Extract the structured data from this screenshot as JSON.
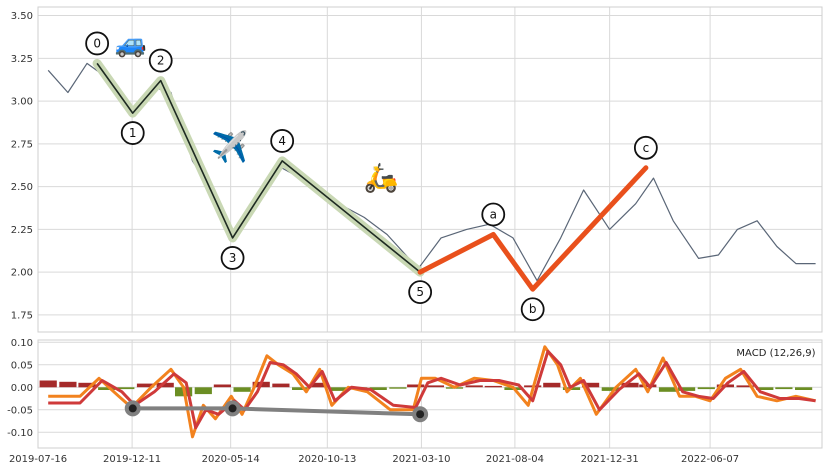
{
  "colors": {
    "price": "#5a6677",
    "impulse_line": "#1e2a22",
    "impulse_glow": "#c9d8b4",
    "correction": "#e9501c",
    "macd": "#f2821e",
    "signal": "#cf3a3a",
    "hist_pos": "#a52a2a",
    "hist_neg": "#6b8e23",
    "divergence": "#808080",
    "grid": "#d9d9d9"
  },
  "icons": [
    "car-emoji",
    "airplane-emoji",
    "scooter-emoji"
  ],
  "chart_data": [
    {
      "type": "line",
      "title": "",
      "xlabel": "",
      "ylabel": "",
      "xlim": [
        "2019-07-16",
        "2022-11-30"
      ],
      "ylim": [
        1.65,
        3.55
      ],
      "grid": true,
      "x_ticks": [
        "2019-07-16",
        "2019-12-11",
        "2020-05-14",
        "2020-10-13",
        "2021-03-10",
        "2021-08-04",
        "2021-12-31",
        "2022-06-07"
      ],
      "y_ticks": [
        "1.75",
        "2.00",
        "2.25",
        "2.50",
        "2.75",
        "3.00",
        "3.25",
        "3.50"
      ],
      "series": [
        {
          "role": "price",
          "x": [
            "2019-08-01",
            "2019-09-01",
            "2019-10-01",
            "2019-11-15",
            "2019-12-10",
            "2020-01-15",
            "2020-02-10",
            "2020-03-15",
            "2020-04-10",
            "2020-05-20",
            "2020-06-20",
            "2020-07-28",
            "2020-09-01",
            "2020-10-10",
            "2020-11-10",
            "2020-12-10",
            "2021-01-15",
            "2021-03-05",
            "2021-04-10",
            "2021-05-20",
            "2021-06-25",
            "2021-08-01",
            "2021-09-08",
            "2021-10-15",
            "2021-11-20",
            "2021-12-31",
            "2022-02-10",
            "2022-03-10",
            "2022-04-10",
            "2022-05-20",
            "2022-06-20",
            "2022-07-20",
            "2022-08-20",
            "2022-09-20",
            "2022-10-20",
            "2022-11-20"
          ],
          "y": [
            3.18,
            3.05,
            3.22,
            3.1,
            2.92,
            3.08,
            3.05,
            2.65,
            2.5,
            2.22,
            2.38,
            2.62,
            2.55,
            2.42,
            2.38,
            2.32,
            2.22,
            2.02,
            2.2,
            2.25,
            2.28,
            2.2,
            1.95,
            2.2,
            2.48,
            2.25,
            2.4,
            2.55,
            2.3,
            2.08,
            2.1,
            2.25,
            2.3,
            2.15,
            2.05,
            2.05
          ]
        }
      ],
      "waves": {
        "labels": [
          "0",
          "1",
          "2",
          "3",
          "4",
          "5",
          "a",
          "b",
          "c"
        ],
        "points": [
          {
            "x": "2019-10-17",
            "y": 3.22
          },
          {
            "x": "2019-12-12",
            "y": 2.93
          },
          {
            "x": "2020-01-25",
            "y": 3.12
          },
          {
            "x": "2020-05-17",
            "y": 2.2
          },
          {
            "x": "2020-08-03",
            "y": 2.65
          },
          {
            "x": "2021-03-08",
            "y": 2.0
          },
          {
            "x": "2021-07-01",
            "y": 2.22
          },
          {
            "x": "2021-09-01",
            "y": 1.9
          },
          {
            "x": "2022-02-26",
            "y": 2.61
          }
        ]
      }
    },
    {
      "type": "bar",
      "title": "",
      "legend": "MACD (12,26,9)",
      "ylim": [
        -0.135,
        0.105
      ],
      "y_ticks": [
        "0.10",
        "0.05",
        "0.00",
        "-0.05",
        "-0.10"
      ],
      "macd": {
        "x": [
          "2019-08-01",
          "2019-09-20",
          "2019-10-20",
          "2019-11-20",
          "2019-12-10",
          "2020-01-10",
          "2020-02-10",
          "2020-03-01",
          "2020-03-15",
          "2020-04-01",
          "2020-04-20",
          "2020-05-15",
          "2020-06-01",
          "2020-06-20",
          "2020-07-10",
          "2020-07-28",
          "2020-08-20",
          "2020-09-10",
          "2020-10-01",
          "2020-10-20",
          "2020-11-15",
          "2020-12-15",
          "2021-01-20",
          "2021-02-25",
          "2021-03-10",
          "2021-04-01",
          "2021-05-01",
          "2021-06-01",
          "2021-07-01",
          "2021-08-01",
          "2021-08-25",
          "2021-09-20",
          "2021-10-10",
          "2021-10-25",
          "2021-11-15",
          "2021-12-10",
          "2022-01-10",
          "2022-02-10",
          "2022-03-01",
          "2022-03-25",
          "2022-04-20",
          "2022-05-15",
          "2022-06-07",
          "2022-07-01",
          "2022-07-25",
          "2022-08-20",
          "2022-09-20",
          "2022-10-20",
          "2022-11-20"
        ],
        "y": [
          -0.02,
          -0.02,
          0.02,
          -0.02,
          -0.045,
          0.0,
          0.04,
          0.0,
          -0.11,
          -0.04,
          -0.07,
          -0.02,
          -0.06,
          0.0,
          0.07,
          0.05,
          0.03,
          -0.01,
          0.04,
          -0.04,
          0.0,
          -0.01,
          -0.05,
          -0.05,
          0.02,
          0.02,
          0.0,
          0.02,
          0.015,
          0.0,
          -0.04,
          0.09,
          0.05,
          -0.01,
          0.02,
          -0.06,
          0.0,
          0.04,
          -0.01,
          0.065,
          -0.02,
          -0.02,
          -0.03,
          0.02,
          0.04,
          -0.02,
          -0.03,
          -0.02,
          -0.03
        ]
      },
      "signal": {
        "x": [
          "2019-08-01",
          "2019-09-20",
          "2019-10-25",
          "2019-11-25",
          "2019-12-15",
          "2020-01-15",
          "2020-02-15",
          "2020-03-05",
          "2020-03-20",
          "2020-04-05",
          "2020-04-25",
          "2020-05-20",
          "2020-06-05",
          "2020-06-25",
          "2020-07-15",
          "2020-08-05",
          "2020-08-25",
          "2020-09-15",
          "2020-10-05",
          "2020-10-25",
          "2020-11-20",
          "2020-12-20",
          "2021-01-25",
          "2021-03-01",
          "2021-03-20",
          "2021-04-10",
          "2021-05-10",
          "2021-06-10",
          "2021-07-10",
          "2021-08-10",
          "2021-09-01",
          "2021-09-25",
          "2021-10-15",
          "2021-10-30",
          "2021-11-20",
          "2021-12-15",
          "2022-01-15",
          "2022-02-15",
          "2022-03-05",
          "2022-03-30",
          "2022-04-25",
          "2022-05-20",
          "2022-06-12",
          "2022-07-05",
          "2022-07-30",
          "2022-08-25",
          "2022-09-25",
          "2022-10-25",
          "2022-11-20"
        ],
        "y": [
          -0.035,
          -0.035,
          0.015,
          -0.01,
          -0.04,
          -0.01,
          0.03,
          0.01,
          -0.09,
          -0.05,
          -0.06,
          -0.03,
          -0.05,
          -0.01,
          0.055,
          0.05,
          0.03,
          0.0,
          0.035,
          -0.03,
          0.0,
          -0.005,
          -0.04,
          -0.045,
          0.01,
          0.02,
          0.005,
          0.015,
          0.015,
          0.005,
          -0.03,
          0.08,
          0.05,
          0.0,
          0.015,
          -0.05,
          -0.005,
          0.03,
          0.0,
          0.055,
          -0.01,
          -0.02,
          -0.025,
          0.01,
          0.035,
          -0.01,
          -0.025,
          -0.025,
          -0.03
        ]
      },
      "histogram": {
        "x": [
          "2019-08-01",
          "2019-09-01",
          "2019-10-01",
          "2019-11-01",
          "2019-12-01",
          "2020-01-01",
          "2020-02-01",
          "2020-03-01",
          "2020-04-01",
          "2020-05-01",
          "2020-06-01",
          "2020-07-01",
          "2020-08-01",
          "2020-09-01",
          "2020-10-01",
          "2020-11-01",
          "2020-12-01",
          "2021-01-01",
          "2021-02-01",
          "2021-03-01",
          "2021-04-01",
          "2021-05-01",
          "2021-06-01",
          "2021-07-01",
          "2021-08-01",
          "2021-09-01",
          "2021-10-01",
          "2021-11-01",
          "2021-12-01",
          "2022-01-01",
          "2022-02-01",
          "2022-03-01",
          "2022-04-01",
          "2022-05-01",
          "2022-06-01",
          "2022-07-01",
          "2022-08-01",
          "2022-09-01",
          "2022-10-01",
          "2022-11-01"
        ],
        "y": [
          0.015,
          0.012,
          0.01,
          -0.006,
          -0.004,
          0.008,
          0.01,
          -0.02,
          -0.015,
          0.006,
          -0.01,
          0.012,
          0.008,
          -0.006,
          0.01,
          -0.008,
          -0.005,
          -0.006,
          -0.003,
          0.006,
          0.004,
          -0.003,
          0.004,
          0.003,
          -0.006,
          0.004,
          0.01,
          -0.006,
          0.01,
          -0.008,
          0.01,
          0.006,
          -0.01,
          -0.008,
          -0.004,
          0.006,
          0.004,
          -0.006,
          -0.004,
          -0.006
        ]
      },
      "divergence": {
        "x": [
          "2019-12-12",
          "2020-05-17",
          "2021-03-08"
        ],
        "y": [
          -0.047,
          -0.047,
          -0.06
        ]
      }
    }
  ]
}
